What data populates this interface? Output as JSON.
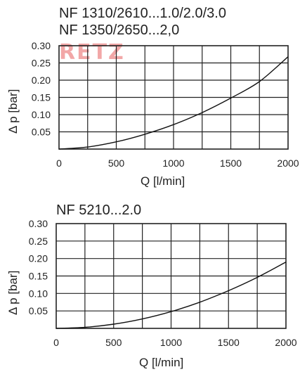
{
  "chart_data": [
    {
      "type": "line",
      "title_lines": [
        "NF 1310/2610...1.0/2.0/3.0",
        "NF 1350/2650...2,0"
      ],
      "xlabel": "Q   [l/min]",
      "ylabel": "Δ p   [bar]",
      "xlim": [
        0,
        2000
      ],
      "ylim": [
        0,
        0.3
      ],
      "x_ticks": [
        "0",
        "500",
        "1000",
        "1500",
        "2000"
      ],
      "y_ticks": [
        "0.05",
        "0.10",
        "0.15",
        "0.20",
        "0.25",
        "0.30"
      ],
      "grid": true,
      "series": [
        {
          "x": [
            0,
            250,
            500,
            750,
            1000,
            1250,
            1500,
            1750,
            2000
          ],
          "values": [
            0,
            0.006,
            0.021,
            0.043,
            0.071,
            0.106,
            0.148,
            0.196,
            0.268
          ]
        }
      ]
    },
    {
      "type": "line",
      "title_lines": [
        "NF 5210...2.0"
      ],
      "xlabel": "Q   [l/min]",
      "ylabel": "Δ p   [bar]",
      "xlim": [
        0,
        2000
      ],
      "ylim": [
        0,
        0.3
      ],
      "x_ticks": [
        "0",
        "500",
        "1000",
        "1500",
        "2000"
      ],
      "y_ticks": [
        "0.05",
        "0.10",
        "0.15",
        "0.20",
        "0.25",
        "0.30"
      ],
      "grid": true,
      "series": [
        {
          "x": [
            0,
            250,
            500,
            750,
            1000,
            1250,
            1500,
            1750,
            2000
          ],
          "values": [
            0,
            0.003,
            0.012,
            0.027,
            0.048,
            0.075,
            0.108,
            0.146,
            0.19
          ]
        }
      ]
    }
  ],
  "watermark": "RETZ"
}
